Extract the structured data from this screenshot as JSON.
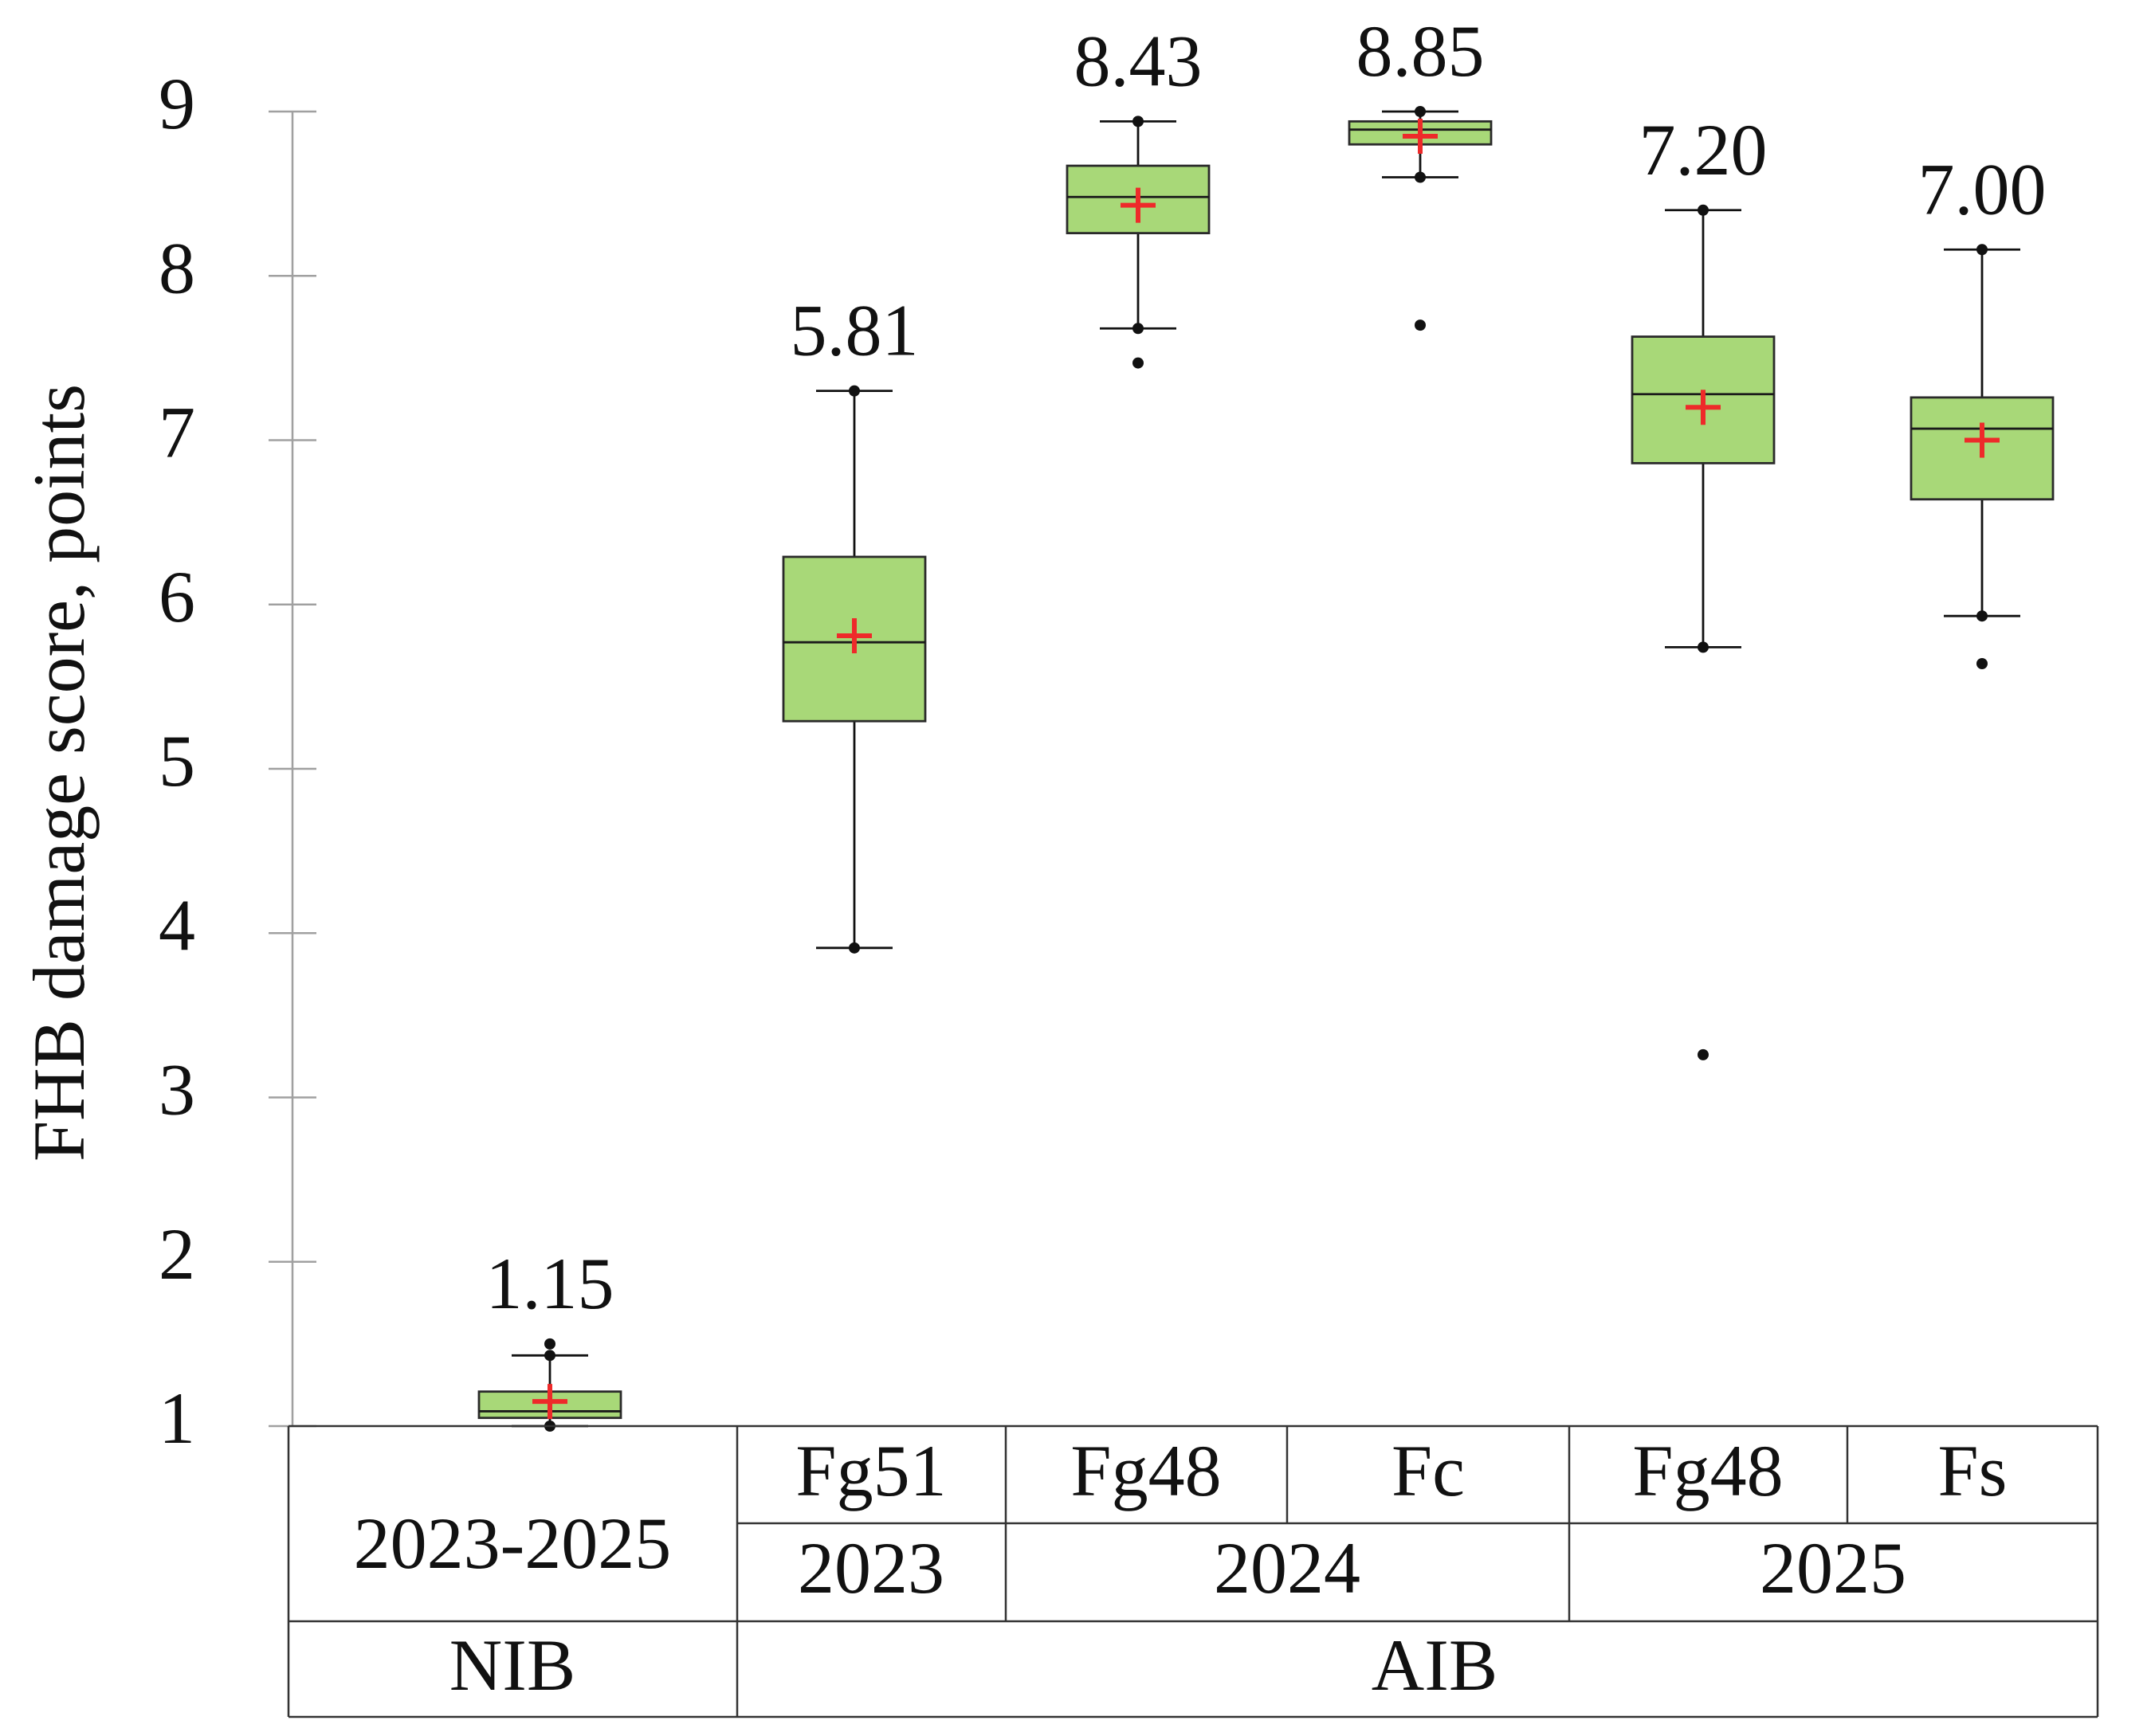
{
  "chart_data": {
    "type": "box",
    "ylabel": "FHB damage score, points",
    "ylim": [
      1,
      9
    ],
    "yticks": [
      1,
      2,
      3,
      4,
      5,
      6,
      7,
      8,
      9
    ],
    "grid": false,
    "box_color": "#a8d878",
    "mean_marker_color": "#ee2a2a",
    "groups": [
      {
        "min": 1.0,
        "q1": 1.05,
        "median": 1.09,
        "q3": 1.21,
        "max": 1.43,
        "mean": 1.15,
        "mean_label": "1.15",
        "outliers": [
          1.5
        ]
      },
      {
        "min": 3.91,
        "q1": 5.29,
        "median": 5.77,
        "q3": 6.29,
        "max": 7.3,
        "mean": 5.81,
        "mean_label": "5.81",
        "outliers": []
      },
      {
        "min": 7.68,
        "q1": 8.26,
        "median": 8.48,
        "q3": 8.67,
        "max": 8.94,
        "mean": 8.43,
        "mean_label": "8.43",
        "outliers": [
          7.47
        ]
      },
      {
        "min": 8.6,
        "q1": 8.8,
        "median": 8.89,
        "q3": 8.94,
        "max": 9.0,
        "mean": 8.85,
        "mean_label": "8.85",
        "outliers": [
          7.7
        ]
      },
      {
        "min": 5.74,
        "q1": 6.86,
        "median": 7.28,
        "q3": 7.63,
        "max": 8.4,
        "mean": 7.2,
        "mean_label": "7.20",
        "outliers": [
          3.26
        ]
      },
      {
        "min": 5.93,
        "q1": 6.64,
        "median": 7.07,
        "q3": 7.26,
        "max": 8.16,
        "mean": 7.0,
        "mean_label": "7.00",
        "outliers": [
          5.64
        ]
      }
    ],
    "category_table": {
      "group_row1": [
        "2023-2025",
        "Fg51",
        "Fg48",
        "Fc",
        "Fg48",
        "Fs"
      ],
      "year_row": [
        "2023",
        "2024",
        "2025"
      ],
      "treatment_row": [
        "NIB",
        "AIB"
      ]
    }
  }
}
